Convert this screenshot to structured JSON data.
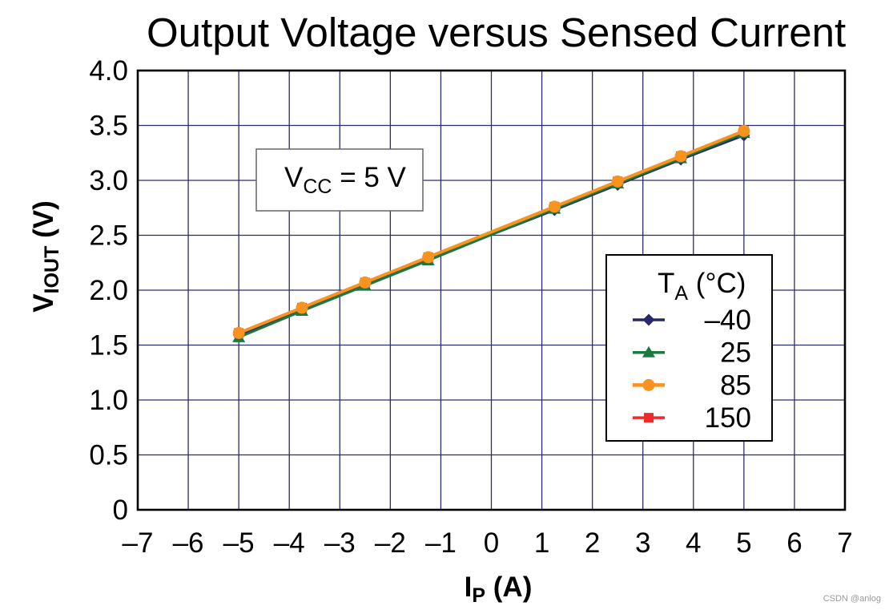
{
  "watermark": "CSDN @anlog",
  "chart_data": {
    "type": "line",
    "title": "Output Voltage versus Sensed Current",
    "xlabel": {
      "main": "I",
      "sub": "P",
      "rest": " (A)"
    },
    "ylabel": {
      "main": "V",
      "sub": "IOUT",
      "rest": " (V)"
    },
    "xlim": [
      -7,
      7
    ],
    "ylim": [
      0,
      4
    ],
    "grid": true,
    "x_ticks": [
      -7,
      -6,
      -5,
      -4,
      -3,
      -2,
      -1,
      0,
      1,
      2,
      3,
      4,
      5,
      6,
      7
    ],
    "x_tick_labels": [
      "–7",
      "–6",
      "–5",
      "–4",
      "–3",
      "–2",
      "–1",
      "0",
      "1",
      "2",
      "3",
      "4",
      "5",
      "6",
      "7"
    ],
    "y_ticks": [
      0,
      0.5,
      1.0,
      1.5,
      2.0,
      2.5,
      3.0,
      3.5,
      4.0
    ],
    "y_tick_labels": [
      "0",
      "0.5",
      "1.0",
      "1.5",
      "2.0",
      "2.5",
      "3.0",
      "3.5",
      "4.0"
    ],
    "x": [
      -5,
      -3.75,
      -2.5,
      -1.25,
      1.25,
      2.5,
      3.75,
      5
    ],
    "series": [
      {
        "name": "–40",
        "color": "#27296b",
        "marker": "diamond",
        "values": [
          1.59,
          1.82,
          2.05,
          2.28,
          2.73,
          2.96,
          3.19,
          3.41
        ]
      },
      {
        "name": "25",
        "color": "#1b7a3e",
        "marker": "triangle",
        "values": [
          1.57,
          1.81,
          2.04,
          2.27,
          2.74,
          2.97,
          3.2,
          3.43
        ]
      },
      {
        "name": "85",
        "color": "#f7931e",
        "marker": "circle",
        "values": [
          1.61,
          1.84,
          2.07,
          2.3,
          2.76,
          2.99,
          3.22,
          3.45
        ]
      },
      {
        "name": "150",
        "color": "#ee2b2c",
        "marker": "square",
        "values": [
          1.61,
          1.84,
          2.07,
          2.3,
          2.76,
          2.99,
          3.22,
          3.45
        ]
      }
    ],
    "legend": {
      "title": {
        "main": "T",
        "sub": "A",
        "rest": " (°C)"
      },
      "placement": "right"
    },
    "annotation": {
      "main": "V",
      "sub": "CC",
      "rest": " = 5 V"
    }
  }
}
